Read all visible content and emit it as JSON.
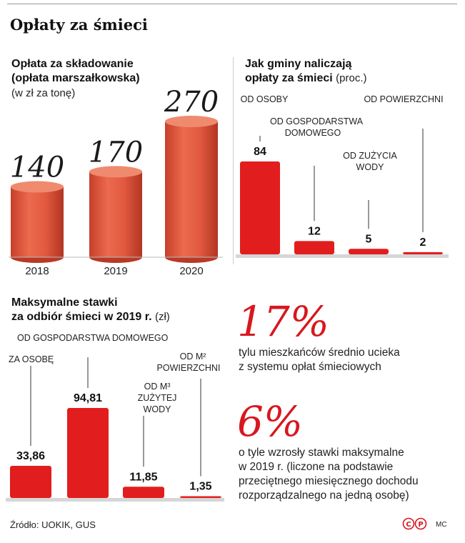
{
  "title": "Opłaty za śmieci",
  "colors": {
    "accent_red": "#d7171f",
    "cylinder": "#e0553c"
  },
  "charts": {
    "marshal_fee": {
      "title_line1": "Opłata za składowanie",
      "title_line2": "(opłata marszałkowska)",
      "unit": "(w zł za tonę)"
    },
    "methods": {
      "title_line1": "Jak gminy naliczają",
      "title_line2": "opłaty za śmieci",
      "unit": "(proc.)"
    },
    "max_rates": {
      "title_line1": "Maksymalne stawki",
      "title_line2": "za odbiór śmieci w 2019 r.",
      "unit": "(zł)"
    }
  },
  "chart_data": [
    {
      "type": "bar",
      "style": "cylinder",
      "categories": [
        "2018",
        "2019",
        "2020"
      ],
      "values": [
        140,
        170,
        270
      ],
      "value_labels": [
        "140",
        "170",
        "270"
      ]
    },
    {
      "type": "bar",
      "categories": [
        "OD OSOBY",
        "OD GOSPODARSTWA DOMOWEGO",
        "OD ZUŻYCIA WODY",
        "OD POWIERZCHNI"
      ],
      "values": [
        84,
        12,
        5,
        2
      ],
      "value_labels": [
        "84",
        "12",
        "5",
        "2"
      ]
    },
    {
      "type": "bar",
      "categories": [
        "ZA OSOBĘ",
        "OD GOSPODARSTWA DOMOWEGO",
        "OD M³ ZUŻYTEJ WODY",
        "OD M² POWIERZCHNI"
      ],
      "values": [
        33.86,
        94.81,
        11.85,
        1.35
      ],
      "value_labels": [
        "33,86",
        "94,81",
        "11,85",
        "1,35"
      ]
    }
  ],
  "labels": {
    "methods": {
      "c1": "OD OSOBY",
      "c2_l1": "OD GOSPODARSTWA",
      "c2_l2": "DOMOWEGO",
      "c3_l1": "OD ZUŻYCIA",
      "c3_l2": "WODY",
      "c4": "OD POWIERZCHNI"
    },
    "max_rates": {
      "c1": "ZA OSOBĘ",
      "c2": "OD GOSPODARSTWA DOMOWEGO",
      "c3_l1": "OD M³",
      "c3_l2": "ZUŻYTEJ",
      "c3_l3": "WODY",
      "c4_l1": "OD M²",
      "c4_l2": "POWIERZCHNI"
    }
  },
  "stats": [
    {
      "value": "17%",
      "line1": "tylu mieszkańców średnio ucieka",
      "line2": "z systemu opłat śmieciowych"
    },
    {
      "value": "6%",
      "line1": "o tyle wzrosły stawki maksymalne",
      "line2": "w 2019 r. (liczone na podstawie",
      "line3": "przeciętnego miesięcznego dochodu",
      "line4": "rozporządzalnego na jedną osobę)"
    }
  ],
  "footer": {
    "source": "Źródło: UOKIK, GUS",
    "author": "MC"
  }
}
